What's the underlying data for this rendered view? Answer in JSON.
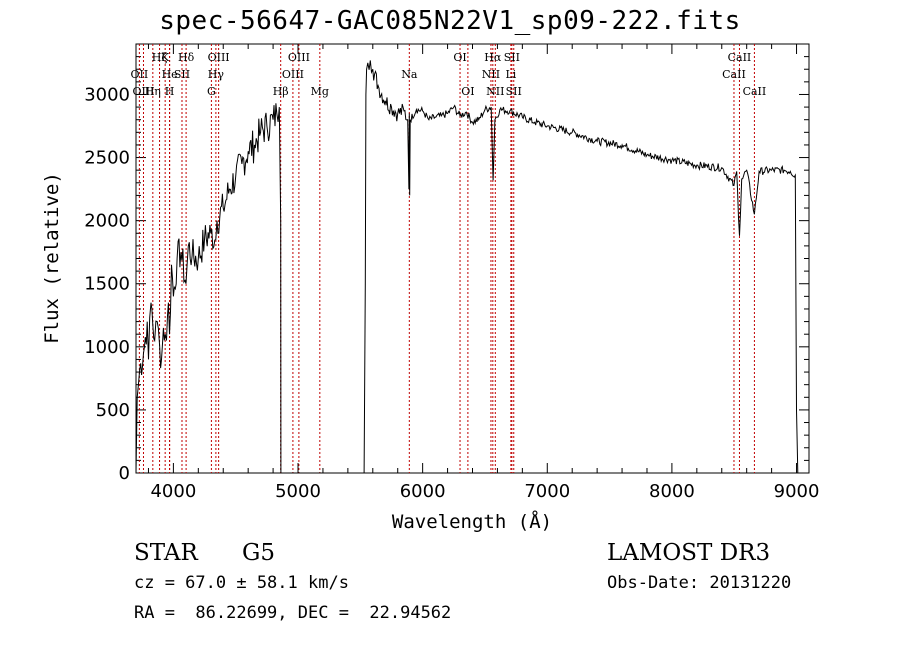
{
  "header": {
    "title": "spec-56647-GAC085N22V1_sp09-222.fits"
  },
  "info": {
    "class": "STAR",
    "subclass": "G5",
    "survey": "LAMOST DR3",
    "cz": "cz = 67.0 ± 58.1 km/s",
    "obs_date": "Obs-Date: 20131220",
    "coords": "RA =  86.22699, DEC =  22.94562"
  },
  "chart_data": {
    "type": "line",
    "title": "spec-56647-GAC085N22V1_sp09-222.fits",
    "xlabel": "Wavelength (Å)",
    "ylabel": "Flux (relative)",
    "xlim": [
      3700,
      9100
    ],
    "ylim": [
      0,
      3400
    ],
    "xticks": [
      4000,
      5000,
      6000,
      7000,
      8000,
      9000
    ],
    "yticks": [
      0,
      500,
      1000,
      1500,
      2000,
      2500,
      3000
    ],
    "series": [
      {
        "name": "spectrum",
        "x": [
          3700,
          3710,
          3730,
          3760,
          3790,
          3800,
          3820,
          3850,
          3870,
          3890,
          3905,
          3920,
          3934,
          3945,
          3960,
          3969,
          3985,
          4000,
          4030,
          4060,
          4101,
          4120,
          4150,
          4200,
          4250,
          4300,
          4340,
          4350,
          4400,
          4450,
          4500,
          4550,
          4600,
          4650,
          4700,
          4750,
          4800,
          4830,
          4850,
          4861,
          4863,
          4880,
          4900,
          4950,
          5000,
          5050,
          5100,
          5150,
          5200,
          5250,
          5300,
          5350,
          5400,
          5450,
          5500,
          5530,
          5540,
          5545,
          5550,
          5560,
          5580,
          5600,
          5650,
          5700,
          5750,
          5800,
          5850,
          5880,
          5890,
          5893,
          5896,
          5900,
          5950,
          6000,
          6050,
          6100,
          6150,
          6200,
          6250,
          6300,
          6350,
          6400,
          6450,
          6500,
          6550,
          6563,
          6565,
          6580,
          6620,
          6700,
          6800,
          6900,
          7000,
          7200,
          7400,
          7600,
          7800,
          8000,
          8200,
          8400,
          8498,
          8520,
          8542,
          8560,
          8600,
          8662,
          8700,
          8800,
          8900,
          8950,
          8990,
          9000,
          9010
        ],
        "y": [
          0,
          600,
          820,
          950,
          1200,
          900,
          1350,
          1050,
          1200,
          1000,
          900,
          1150,
          1100,
          1050,
          1350,
          1100,
          1650,
          1400,
          1700,
          1750,
          1500,
          1800,
          1720,
          1700,
          1850,
          1900,
          1850,
          2000,
          2100,
          2250,
          2350,
          2450,
          2550,
          2600,
          2700,
          2750,
          2800,
          2850,
          2900,
          2000,
          0,
          0,
          0,
          0,
          0,
          0,
          0,
          0,
          0,
          0,
          0,
          0,
          0,
          0,
          0,
          0,
          1500,
          3000,
          3200,
          3250,
          3270,
          3200,
          3050,
          2950,
          2900,
          2850,
          2870,
          2800,
          2250,
          2850,
          2200,
          2800,
          2880,
          2870,
          2800,
          2820,
          2830,
          2850,
          2900,
          2830,
          2860,
          2780,
          2800,
          2880,
          2900,
          2400,
          2320,
          2800,
          2880,
          2870,
          2820,
          2780,
          2750,
          2700,
          2630,
          2600,
          2520,
          2480,
          2440,
          2420,
          2280,
          2390,
          1880,
          2330,
          2400,
          2050,
          2390,
          2400,
          2400,
          2390,
          2360,
          500,
          0
        ]
      }
    ],
    "lines": [
      {
        "name": "Hζ",
        "wl": 3889,
        "row": 1
      },
      {
        "name": "OII",
        "wl": 3727,
        "row": 2
      },
      {
        "name": "OIII",
        "wl": 3760,
        "row": 3
      },
      {
        "name": "K",
        "wl": 3934,
        "row": 1
      },
      {
        "name": "He",
        "wl": 3970,
        "row": 2
      },
      {
        "name": "Hη",
        "wl": 3835,
        "row": 3
      },
      {
        "name": "H",
        "wl": 3969,
        "row": 3
      },
      {
        "name": "SII",
        "wl": 4069,
        "row": 2
      },
      {
        "name": "Hδ",
        "wl": 4102,
        "row": 1
      },
      {
        "name": "OIII",
        "wl": 4363,
        "row": 1
      },
      {
        "name": "Hγ",
        "wl": 4341,
        "row": 2
      },
      {
        "name": "G",
        "wl": 4305,
        "row": 3
      },
      {
        "name": "Hβ",
        "wl": 4861,
        "row": 3
      },
      {
        "name": "OIII",
        "wl": 4959,
        "row": 2
      },
      {
        "name": "OIII",
        "wl": 5007,
        "row": 1
      },
      {
        "name": "Mg",
        "wl": 5175,
        "row": 3
      },
      {
        "name": "Na",
        "wl": 5893,
        "row": 2
      },
      {
        "name": "OI",
        "wl": 6300,
        "row": 1
      },
      {
        "name": "OI",
        "wl": 6363,
        "row": 3
      },
      {
        "name": "Hα",
        "wl": 6563,
        "row": 1
      },
      {
        "name": "NII",
        "wl": 6548,
        "row": 2
      },
      {
        "name": "NII",
        "wl": 6583,
        "row": 3
      },
      {
        "name": "SII",
        "wl": 6716,
        "row": 1
      },
      {
        "name": "Li",
        "wl": 6708,
        "row": 2
      },
      {
        "name": "SII",
        "wl": 6731,
        "row": 3
      },
      {
        "name": "CaII",
        "wl": 8542,
        "row": 1
      },
      {
        "name": "CaII",
        "wl": 8498,
        "row": 2
      },
      {
        "name": "CaII",
        "wl": 8662,
        "row": 3
      }
    ]
  }
}
